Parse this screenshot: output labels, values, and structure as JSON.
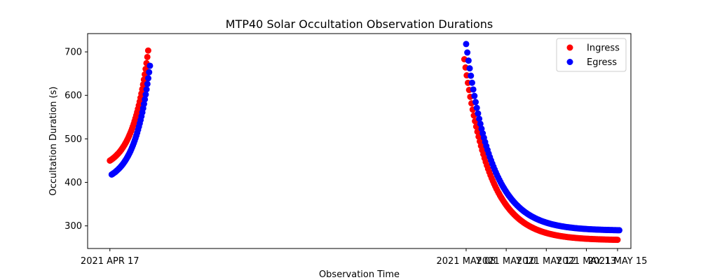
{
  "chart_data": {
    "type": "scatter",
    "title": "MTP40 Solar Occultation Observation Durations",
    "xlabel": "Observation Time",
    "ylabel": "Occultation Duration (s)",
    "xlim": [
      -2.5,
      58.5
    ],
    "ylim": [
      248,
      742
    ],
    "grid": false,
    "legend_position": "upper right",
    "x_ticks": [
      {
        "value": 0,
        "label": "2021 APR 17"
      },
      {
        "value": 40,
        "label": "2021 MAY 08"
      },
      {
        "value": 44.5,
        "label": "2021 MAY 10"
      },
      {
        "value": 49,
        "label": "2021 MAY 12"
      },
      {
        "value": 53.5,
        "label": "2021 MAY 13"
      },
      {
        "value": 57,
        "label": "2021 MAY 15"
      }
    ],
    "y_ticks": [
      300,
      400,
      500,
      600,
      700
    ],
    "series": [
      {
        "name": "Ingress",
        "color": "#ff0000",
        "segments": [
          {
            "x_start": 0,
            "x_end": 4.3,
            "n": 46,
            "y_start": 450,
            "y_end": 703,
            "shape": "rising"
          },
          {
            "x_start": 39.8,
            "x_end": 57,
            "n": 130,
            "y_start": 683,
            "y_end": 268,
            "shape": "falling"
          }
        ]
      },
      {
        "name": "Egress",
        "color": "#0000ff",
        "segments": [
          {
            "x_start": 0.2,
            "x_end": 4.5,
            "n": 46,
            "y_start": 418,
            "y_end": 668,
            "shape": "rising"
          },
          {
            "x_start": 40,
            "x_end": 57.2,
            "n": 130,
            "y_start": 718,
            "y_end": 290,
            "shape": "falling"
          }
        ]
      }
    ],
    "legend": [
      {
        "label": "Ingress",
        "color": "#ff0000"
      },
      {
        "label": "Egress",
        "color": "#0000ff"
      }
    ]
  }
}
